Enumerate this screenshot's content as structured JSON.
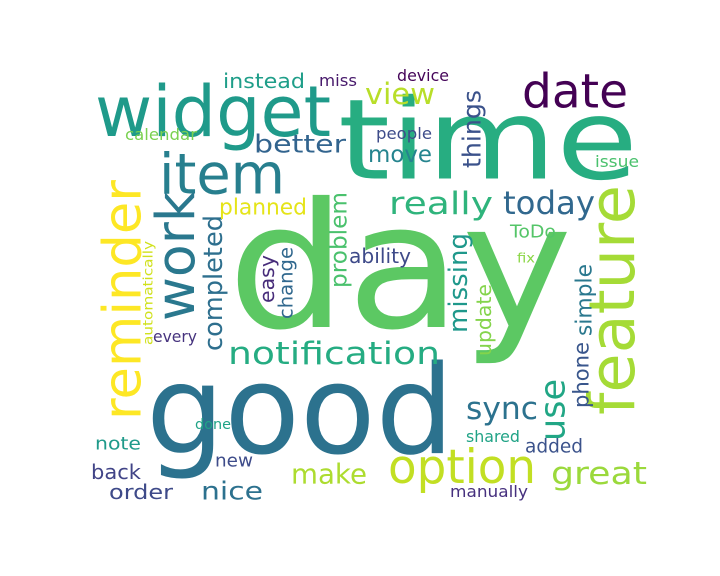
{
  "words": [
    {
      "text": "day",
      "color": "#5cc863"
    },
    {
      "text": "good",
      "color": "#2c728e"
    },
    {
      "text": "time",
      "color": "#27ad81"
    },
    {
      "text": "feature",
      "color": "#a5db36"
    },
    {
      "text": "widget",
      "color": "#1f9a8a"
    },
    {
      "text": "reminder",
      "color": "#fde725"
    },
    {
      "text": "item",
      "color": "#277f8e"
    },
    {
      "text": "date",
      "color": "#440154"
    },
    {
      "text": "work",
      "color": "#2a788e"
    },
    {
      "text": "option",
      "color": "#c2df23"
    },
    {
      "text": "make",
      "color": "#addc30"
    },
    {
      "text": "completed",
      "color": "#2e6f8e"
    },
    {
      "text": "notification",
      "color": "#25ac82"
    },
    {
      "text": "use",
      "color": "#21a685"
    },
    {
      "text": "things",
      "color": "#3b528b"
    },
    {
      "text": "today",
      "color": "#31688e"
    },
    {
      "text": "sync",
      "color": "#2c728e"
    },
    {
      "text": "really",
      "color": "#2fb47c"
    },
    {
      "text": "great",
      "color": "#9bd93c"
    },
    {
      "text": "better",
      "color": "#32648e"
    },
    {
      "text": "view",
      "color": "#b8de29"
    },
    {
      "text": "move",
      "color": "#25848e"
    },
    {
      "text": "nice",
      "color": "#2c718e"
    },
    {
      "text": "missing",
      "color": "#1f988b"
    },
    {
      "text": "problem",
      "color": "#4ac16d"
    },
    {
      "text": "update",
      "color": "#84d44b"
    },
    {
      "text": "ability",
      "color": "#3e4a89"
    },
    {
      "text": "planned",
      "color": "#e5e419"
    },
    {
      "text": "easy",
      "color": "#472c7a"
    },
    {
      "text": "change",
      "color": "#31688e"
    },
    {
      "text": "phone",
      "color": "#39568c"
    },
    {
      "text": "simple",
      "color": "#2a788e"
    },
    {
      "text": "added",
      "color": "#3b528b"
    },
    {
      "text": "instead",
      "color": "#1f9e89"
    },
    {
      "text": "order",
      "color": "#3e4a89"
    },
    {
      "text": "back",
      "color": "#414487"
    },
    {
      "text": "note",
      "color": "#1f9a8a"
    },
    {
      "text": "new",
      "color": "#3e4c8a"
    },
    {
      "text": "ToDo",
      "color": "#54c568"
    },
    {
      "text": "people",
      "color": "#3e4c8a"
    },
    {
      "text": "calendar",
      "color": "#7ad151"
    },
    {
      "text": "every",
      "color": "#46337e"
    },
    {
      "text": "automatically",
      "color": "#d0e11c"
    },
    {
      "text": "shared",
      "color": "#20a386"
    },
    {
      "text": "manually",
      "color": "#46307e"
    },
    {
      "text": "issue",
      "color": "#4ac16d"
    },
    {
      "text": "done",
      "color": "#20a386"
    },
    {
      "text": "device",
      "color": "#450559"
    },
    {
      "text": "miss",
      "color": "#481a6c"
    },
    {
      "text": "fix",
      "color": "#8bd646"
    }
  ]
}
